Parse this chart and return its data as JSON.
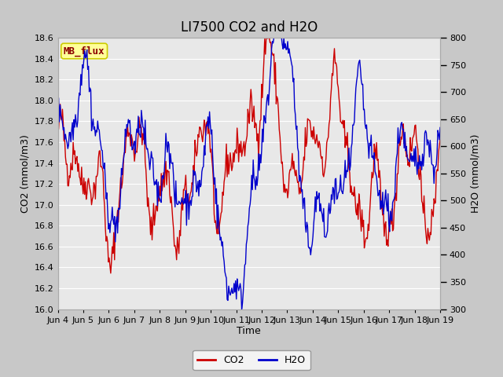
{
  "title": "LI7500 CO2 and H2O",
  "xlabel": "Time",
  "ylabel_left": "CO2 (mmol/m3)",
  "ylabel_right": "H2O (mmol/m3)",
  "co2_ylim": [
    16.0,
    18.6
  ],
  "h2o_ylim": [
    300,
    800
  ],
  "co2_yticks": [
    16.0,
    16.2,
    16.4,
    16.6,
    16.8,
    17.0,
    17.2,
    17.4,
    17.6,
    17.8,
    18.0,
    18.2,
    18.4,
    18.6
  ],
  "h2o_yticks": [
    300,
    350,
    400,
    450,
    500,
    550,
    600,
    650,
    700,
    750,
    800
  ],
  "xtick_labels": [
    "Jun 4",
    "Jun 5",
    "Jun 6",
    "Jun 7",
    "Jun 8",
    "Jun 9",
    "Jun 10",
    "Jun 11",
    "Jun 12",
    "Jun 13",
    "Jun 14",
    "Jun 15",
    "Jun 16",
    "Jun 17",
    "Jun 18",
    "Jun 19"
  ],
  "co2_color": "#cc0000",
  "h2o_color": "#0000cc",
  "plot_bg_color": "#e8e8e8",
  "fig_bg_color": "#c8c8c8",
  "grid_color": "#ffffff",
  "annotation_text": "MB_flux",
  "annotation_bg": "#ffff99",
  "annotation_border": "#cccc00",
  "legend_co2": "CO2",
  "legend_h2o": "H2O",
  "title_fontsize": 12,
  "axis_fontsize": 9,
  "tick_fontsize": 8,
  "line_width": 1.0,
  "seed": 42,
  "n_points": 500
}
